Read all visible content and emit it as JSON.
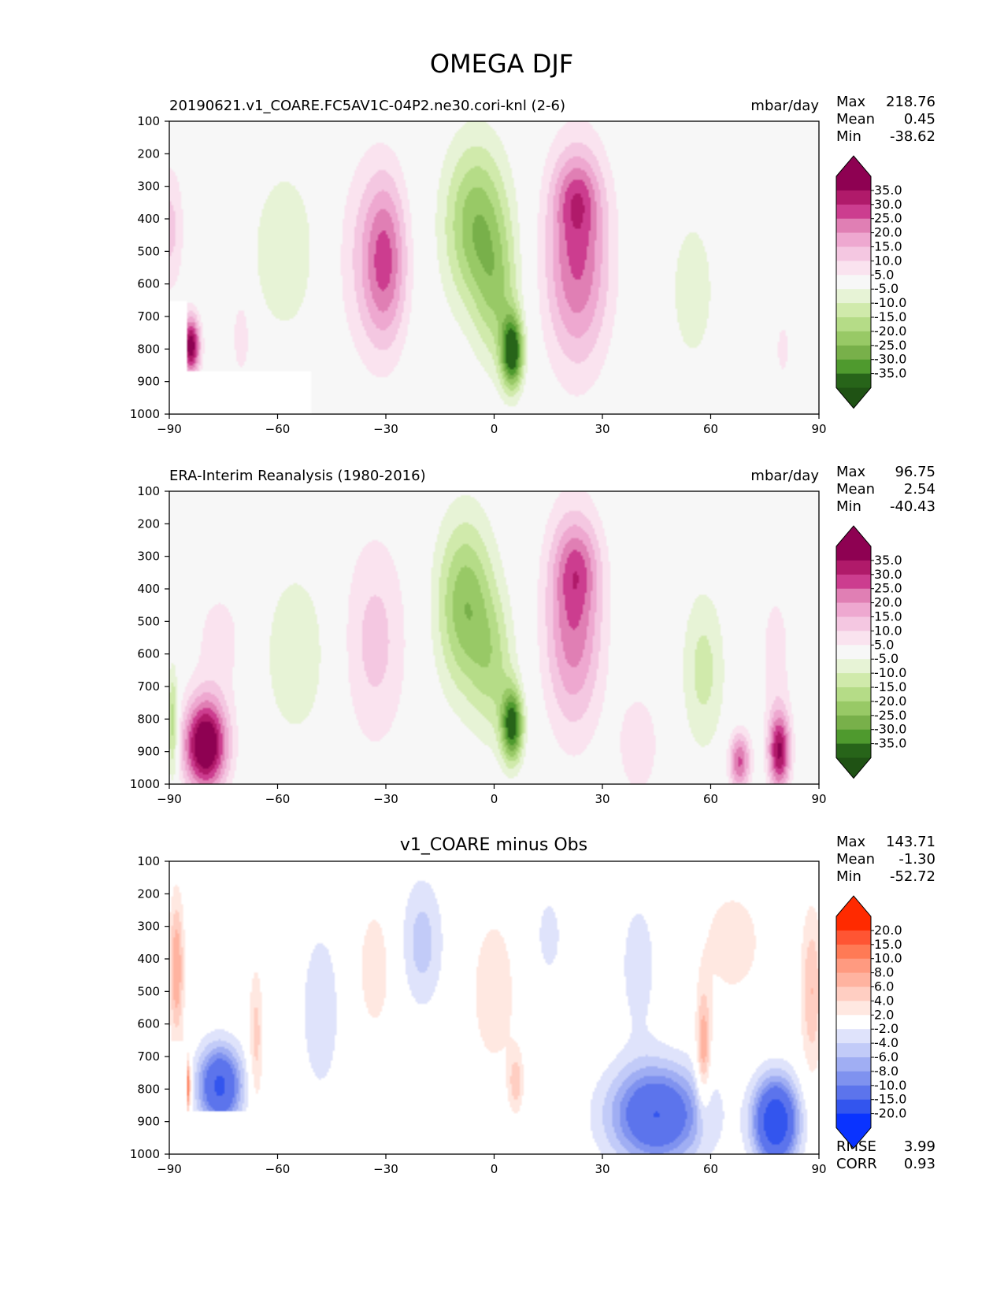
{
  "figure": {
    "title": "OMEGA DJF"
  },
  "chart_data": [
    {
      "type": "heatmap",
      "panel": "test",
      "title": "20190621.v1_COARE.FC5AV1C-04P2.ne30.cori-knl (2-6)",
      "units": "mbar/day",
      "x_ticks": [
        "−90",
        "−60",
        "−30",
        "0",
        "30",
        "60",
        "90"
      ],
      "y_ticks": [
        "100",
        "200",
        "300",
        "400",
        "500",
        "600",
        "700",
        "800",
        "900",
        "1000"
      ],
      "xlim": [
        -90,
        90
      ],
      "ylim": [
        1000,
        100
      ],
      "stats": [
        {
          "label": "Max",
          "value": "218.76"
        },
        {
          "label": "Mean",
          "value": "0.45"
        },
        {
          "label": "Min",
          "value": "-38.62"
        }
      ],
      "colorbar": {
        "labels": [
          "35.0",
          "30.0",
          "25.0",
          "20.0",
          "15.0",
          "10.0",
          "5.0",
          "-5.0",
          "-10.0",
          "-15.0",
          "-20.0",
          "-25.0",
          "-30.0",
          "-35.0"
        ],
        "colors": [
          "#8e0152",
          "#b01a6a",
          "#cc3d8f",
          "#e07fb4",
          "#eea8d0",
          "#f4c7e1",
          "#fae3ef",
          "#f7f7f7",
          "#e7f3d6",
          "#d0eaab",
          "#b5dc87",
          "#98c966",
          "#78b04a",
          "#4f9a2e",
          "#276419"
        ],
        "over_color": "#8e0152",
        "under_color": "#1f5214"
      },
      "blobs": [
        {
          "lat": -30,
          "p": 530,
          "wl": 6,
          "wp": 260,
          "v": 22
        },
        {
          "lat": -36,
          "p": 520,
          "wl": 9,
          "wp": 320,
          "v": 9
        },
        {
          "lat": -58,
          "p": 500,
          "wl": 10,
          "wp": 280,
          "v": -9
        },
        {
          "lat": -90,
          "p": 430,
          "wl": 4,
          "wp": 200,
          "v": 12
        },
        {
          "lat": -84,
          "p": 790,
          "wl": 2.5,
          "wp": 90,
          "v": 40
        },
        {
          "lat": -70,
          "p": 760,
          "wl": 2.5,
          "wp": 120,
          "v": 10
        },
        {
          "lat": -5,
          "p": 420,
          "wl": 9,
          "wp": 260,
          "v": -24
        },
        {
          "lat": 5,
          "p": 810,
          "wl": 3,
          "wp": 110,
          "v": -40
        },
        {
          "lat": 1,
          "p": 650,
          "wl": 6,
          "wp": 220,
          "v": -14
        },
        {
          "lat": 23,
          "p": 520,
          "wl": 9,
          "wp": 330,
          "v": 26
        },
        {
          "lat": 23,
          "p": 330,
          "wl": 6,
          "wp": 120,
          "v": 12
        },
        {
          "lat": 55,
          "p": 620,
          "wl": 7,
          "wp": 260,
          "v": -8
        },
        {
          "lat": 80,
          "p": 800,
          "wl": 3,
          "wp": 140,
          "v": 6
        }
      ],
      "missing": [
        [
          -85,
          -51,
          870,
          1000
        ],
        [
          -90,
          -85,
          650,
          1000
        ]
      ]
    },
    {
      "type": "heatmap",
      "panel": "reference",
      "title": "ERA-Interim Reanalysis (1980-2016)",
      "units": "mbar/day",
      "x_ticks": [
        "−90",
        "−60",
        "−30",
        "0",
        "30",
        "60",
        "90"
      ],
      "y_ticks": [
        "100",
        "200",
        "300",
        "400",
        "500",
        "600",
        "700",
        "800",
        "900",
        "1000"
      ],
      "xlim": [
        -90,
        90
      ],
      "ylim": [
        1000,
        100
      ],
      "stats": [
        {
          "label": "Max",
          "value": "96.75"
        },
        {
          "label": "Mean",
          "value": "2.54"
        },
        {
          "label": "Min",
          "value": "-40.43"
        }
      ],
      "colorbar": {
        "labels": [
          "35.0",
          "30.0",
          "25.0",
          "20.0",
          "15.0",
          "10.0",
          "5.0",
          "-5.0",
          "-10.0",
          "-15.0",
          "-20.0",
          "-25.0",
          "-30.0",
          "-35.0"
        ],
        "colors": [
          "#8e0152",
          "#b01a6a",
          "#cc3d8f",
          "#e07fb4",
          "#eea8d0",
          "#f4c7e1",
          "#fae3ef",
          "#f7f7f7",
          "#e7f3d6",
          "#d0eaab",
          "#b5dc87",
          "#98c966",
          "#78b04a",
          "#4f9a2e",
          "#276419"
        ],
        "over_color": "#8e0152",
        "under_color": "#1f5214"
      },
      "blobs": [
        {
          "lat": -33,
          "p": 560,
          "wl": 9,
          "wp": 330,
          "v": 12
        },
        {
          "lat": -55,
          "p": 600,
          "wl": 9,
          "wp": 260,
          "v": -10
        },
        {
          "lat": -80,
          "p": 880,
          "wl": 6,
          "wp": 140,
          "v": 45
        },
        {
          "lat": -76,
          "p": 560,
          "wl": 8,
          "wp": 200,
          "v": 7
        },
        {
          "lat": -89,
          "p": 820,
          "wl": 1.5,
          "wp": 170,
          "v": -20
        },
        {
          "lat": -8,
          "p": 450,
          "wl": 8,
          "wp": 270,
          "v": -24
        },
        {
          "lat": 5,
          "p": 820,
          "wl": 3,
          "wp": 110,
          "v": -38
        },
        {
          "lat": 0,
          "p": 650,
          "wl": 6,
          "wp": 220,
          "v": -13
        },
        {
          "lat": 22,
          "p": 500,
          "wl": 8,
          "wp": 330,
          "v": 24
        },
        {
          "lat": 23,
          "p": 330,
          "wl": 6,
          "wp": 130,
          "v": 11
        },
        {
          "lat": 58,
          "p": 650,
          "wl": 6,
          "wp": 250,
          "v": -12
        },
        {
          "lat": 79,
          "p": 900,
          "wl": 3,
          "wp": 120,
          "v": 35
        },
        {
          "lat": 68,
          "p": 930,
          "wl": 3,
          "wp": 90,
          "v": 26
        },
        {
          "lat": 40,
          "p": 880,
          "wl": 6,
          "wp": 170,
          "v": 9
        },
        {
          "lat": 78,
          "p": 600,
          "wl": 5,
          "wp": 250,
          "v": 7
        }
      ],
      "missing": []
    },
    {
      "type": "heatmap",
      "panel": "difference",
      "title": "v1_COARE minus Obs",
      "units": "",
      "x_ticks": [
        "−90",
        "−60",
        "−30",
        "0",
        "30",
        "60",
        "90"
      ],
      "y_ticks": [
        "100",
        "200",
        "300",
        "400",
        "500",
        "600",
        "700",
        "800",
        "900",
        "1000"
      ],
      "xlim": [
        -90,
        90
      ],
      "ylim": [
        1000,
        100
      ],
      "stats": [
        {
          "label": "Max",
          "value": "143.71"
        },
        {
          "label": "Mean",
          "value": "-1.30"
        },
        {
          "label": "Min",
          "value": "-52.72"
        }
      ],
      "extra_stats": [
        {
          "label": "RMSE",
          "value": "3.99"
        },
        {
          "label": "CORR",
          "value": "0.93"
        }
      ],
      "colorbar": {
        "labels": [
          "20.0",
          "15.0",
          "10.0",
          "8.0",
          "6.0",
          "4.0",
          "2.0",
          "-2.0",
          "-4.0",
          "-6.0",
          "-8.0",
          "-10.0",
          "-15.0",
          "-20.0"
        ],
        "colors": [
          "#ff2a00",
          "#ff5533",
          "#ff7a55",
          "#ff9a80",
          "#ffb3a0",
          "#ffcec2",
          "#ffe8e1",
          "#ffffff",
          "#dfe3fb",
          "#c2cbf8",
          "#a0aef3",
          "#7f92ef",
          "#5c74ec",
          "#3355ee",
          "#0a33ff"
        ],
        "over_color": "#ff2a00",
        "under_color": "#0a33ff"
      },
      "blobs": [
        {
          "lat": -20,
          "p": 350,
          "wl": 6,
          "wp": 200,
          "v": -5
        },
        {
          "lat": -48,
          "p": 560,
          "wl": 6,
          "wp": 280,
          "v": -3.5
        },
        {
          "lat": -33,
          "p": 430,
          "wl": 6,
          "wp": 240,
          "v": 3
        },
        {
          "lat": 0,
          "p": 500,
          "wl": 8,
          "wp": 300,
          "v": 3
        },
        {
          "lat": 6,
          "p": 780,
          "wl": 2,
          "wp": 90,
          "v": 5
        },
        {
          "lat": 15,
          "p": 330,
          "wl": 6,
          "wp": 200,
          "v": -2.5
        },
        {
          "lat": -88,
          "p": 430,
          "wl": 2,
          "wp": 220,
          "v": 8
        },
        {
          "lat": -86,
          "p": 790,
          "wl": 1.5,
          "wp": 80,
          "v": 25
        },
        {
          "lat": -76,
          "p": 790,
          "wl": 6,
          "wp": 120,
          "v": -16
        },
        {
          "lat": -66,
          "p": 650,
          "wl": 2,
          "wp": 220,
          "v": 5
        },
        {
          "lat": 45,
          "p": 880,
          "wl": 13,
          "wp": 150,
          "v": -15
        },
        {
          "lat": 78,
          "p": 900,
          "wl": 6,
          "wp": 130,
          "v": -20
        },
        {
          "lat": 58,
          "p": 680,
          "wl": 2,
          "wp": 180,
          "v": 8
        },
        {
          "lat": 66,
          "p": 350,
          "wl": 10,
          "wp": 200,
          "v": 3
        },
        {
          "lat": 88,
          "p": 500,
          "wl": 3,
          "wp": 250,
          "v": 6
        },
        {
          "lat": 40,
          "p": 420,
          "wl": 6,
          "wp": 250,
          "v": -3
        }
      ],
      "missing": [
        [
          -85,
          -53,
          870,
          1000
        ],
        [
          -90,
          -85,
          650,
          1000
        ]
      ]
    }
  ]
}
